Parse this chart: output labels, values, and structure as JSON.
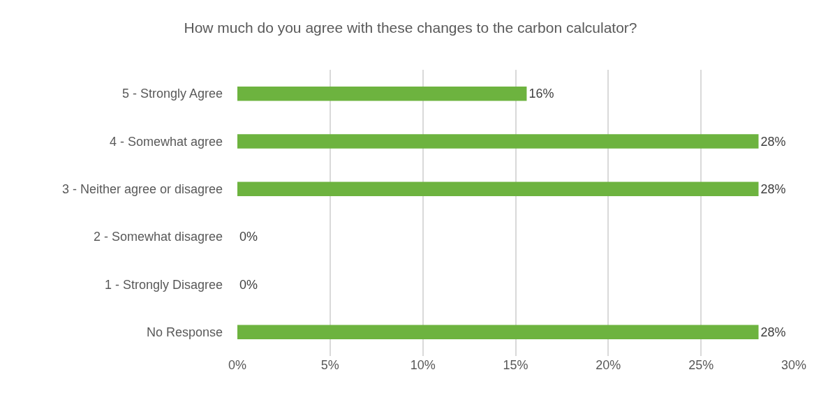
{
  "chart_data": {
    "type": "bar",
    "orientation": "horizontal",
    "title": "How much do you agree with these changes to the carbon calculator?",
    "categories": [
      "5 - Strongly Agree",
      "4 - Somewhat agree",
      "3 - Neither agree or disagree",
      "2 - Somewhat disagree",
      "1 - Strongly Disagree",
      "No Response"
    ],
    "values": [
      15.6,
      28.1,
      28.1,
      0,
      0,
      28.1
    ],
    "value_labels": [
      "16%",
      "28%",
      "28%",
      "0%",
      "0%",
      "28%"
    ],
    "color": "#6db33f",
    "xlim": [
      0,
      30
    ],
    "xticks": [
      {
        "value": 0,
        "label": "0%"
      },
      {
        "value": 5,
        "label": "5%"
      },
      {
        "value": 10,
        "label": "10%"
      },
      {
        "value": 15,
        "label": "15%"
      },
      {
        "value": 20,
        "label": "20%"
      },
      {
        "value": 25,
        "label": "25%"
      },
      {
        "value": 30,
        "label": "30%"
      }
    ],
    "grid": "x",
    "legend": false
  }
}
